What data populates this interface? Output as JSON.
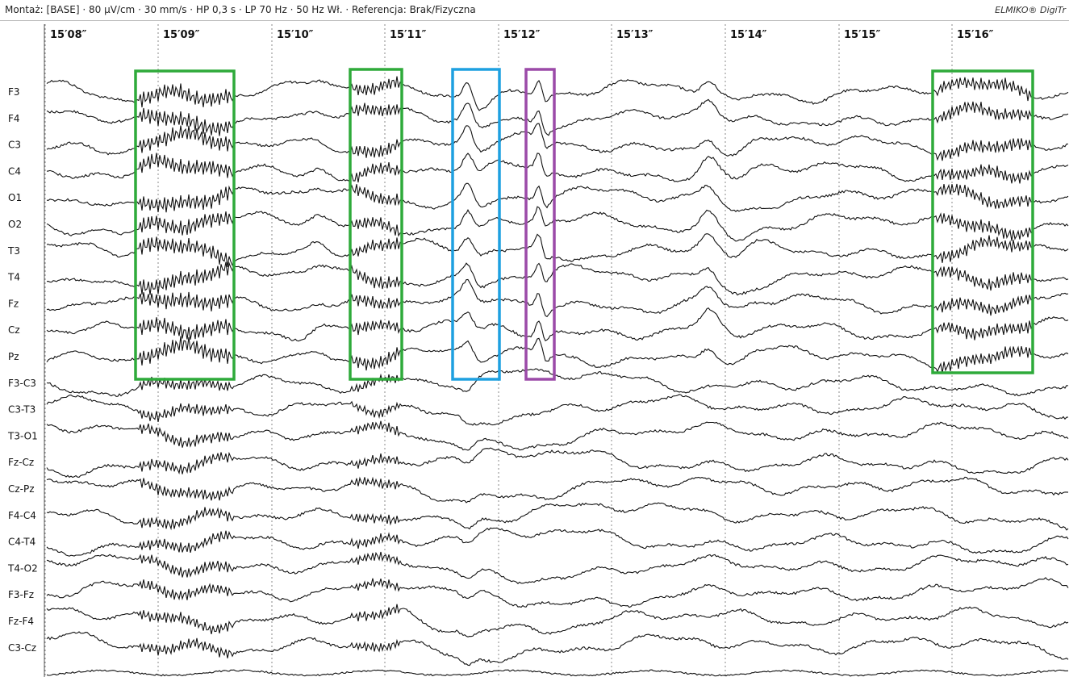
{
  "header": {
    "montage": "Montaż: [BASE]",
    "sensitivity": "80 µV/cm",
    "speed": "30 mm/s",
    "hp": "HP 0,3 s",
    "lp": "LP 70 Hz",
    "notch": "50 Hz Wł.",
    "reference": "Referencja: Brak/Fizyczna",
    "brand": "ELMIKO® DigiTr"
  },
  "time_labels": [
    "15′08″",
    "15′09″",
    "15′10″",
    "15′11″",
    "15′12″",
    "15′13″",
    "15′14″",
    "15′15″",
    "15′16″"
  ],
  "channels": [
    "F3",
    "F4",
    "C3",
    "C4",
    "O1",
    "O2",
    "T3",
    "T4",
    "Fz",
    "Cz",
    "Pz",
    "F3-C3",
    "C3-T3",
    "T3-O1",
    "Fz-Cz",
    "Cz-Pz",
    "F4-C4",
    "C4-T4",
    "T4-O2",
    "F3-Fz",
    "Fz-F4",
    "C3-Cz"
  ],
  "colors": {
    "trace": "#111111",
    "grid": "#888888",
    "box_green": "#2eaa3a",
    "box_blue": "#1ea0e0",
    "box_purple": "#9b4aa8"
  }
}
